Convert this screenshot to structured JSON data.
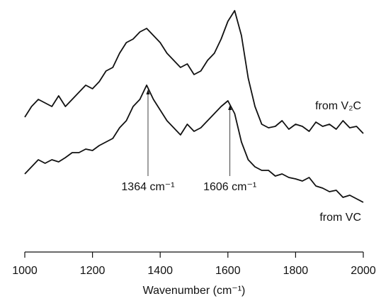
{
  "chart_data": {
    "type": "line",
    "x_label": "Wavenumber (cm⁻¹)",
    "x": [
      1000,
      1020,
      1040,
      1060,
      1080,
      1100,
      1120,
      1140,
      1160,
      1180,
      1200,
      1220,
      1240,
      1260,
      1280,
      1300,
      1320,
      1340,
      1360,
      1380,
      1400,
      1420,
      1440,
      1460,
      1480,
      1500,
      1520,
      1540,
      1560,
      1580,
      1600,
      1620,
      1640,
      1660,
      1680,
      1700,
      1720,
      1740,
      1760,
      1780,
      1800,
      1820,
      1840,
      1860,
      1880,
      1900,
      1920,
      1940,
      1960,
      1980,
      2000
    ],
    "series": [
      {
        "name": "from V₂C",
        "color": "#111111",
        "values": [
          195,
          210,
          220,
          215,
          210,
          225,
          210,
          220,
          230,
          240,
          235,
          245,
          260,
          265,
          285,
          300,
          305,
          315,
          320,
          310,
          300,
          285,
          275,
          265,
          270,
          255,
          260,
          275,
          285,
          305,
          330,
          345,
          310,
          250,
          210,
          185,
          180,
          182,
          190,
          178,
          185,
          182,
          175,
          188,
          182,
          185,
          178,
          190,
          180,
          182,
          172
        ]
      },
      {
        "name": "from VC",
        "color": "#111111",
        "values": [
          115,
          125,
          135,
          130,
          135,
          132,
          138,
          145,
          145,
          150,
          148,
          155,
          160,
          165,
          180,
          190,
          210,
          220,
          240,
          220,
          205,
          190,
          180,
          170,
          185,
          175,
          180,
          190,
          200,
          210,
          218,
          200,
          160,
          135,
          125,
          120,
          120,
          112,
          115,
          110,
          108,
          105,
          110,
          98,
          95,
          90,
          92,
          82,
          85,
          80,
          75
        ]
      }
    ],
    "annotations": [
      {
        "text": "1364 cm⁻¹",
        "x": 1364
      },
      {
        "text": "1606 cm⁻¹",
        "x": 1606
      }
    ],
    "xlim": [
      1000,
      2000
    ],
    "xticks": [
      1000,
      1200,
      1400,
      1600,
      1800,
      2000
    ],
    "ylim": [
      0,
      360
    ]
  }
}
